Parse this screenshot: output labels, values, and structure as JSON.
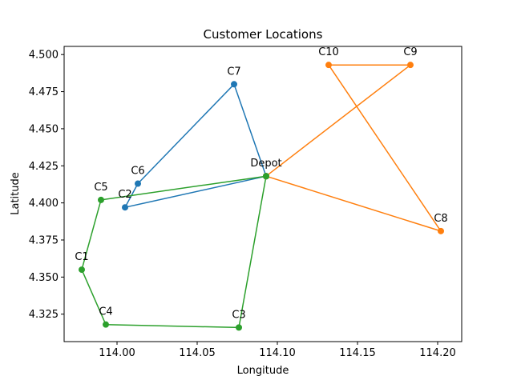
{
  "chart_data": {
    "type": "line",
    "title": "Customer Locations",
    "xlabel": "Longitude",
    "ylabel": "Latitude",
    "xlim": [
      113.967,
      114.215
    ],
    "ylim": [
      4.3065,
      4.5055
    ],
    "x_ticks": [
      114.0,
      114.05,
      114.1,
      114.15,
      114.2
    ],
    "x_tick_labels": [
      "114.00",
      "114.05",
      "114.10",
      "114.15",
      "114.20"
    ],
    "y_ticks": [
      4.325,
      4.35,
      4.375,
      4.4,
      4.425,
      4.45,
      4.475,
      4.5
    ],
    "y_tick_labels": [
      "4.325",
      "4.350",
      "4.375",
      "4.400",
      "4.425",
      "4.450",
      "4.475",
      "4.500"
    ],
    "grid": false,
    "locations": [
      {
        "label": "Depot",
        "x": 114.093,
        "y": 4.418
      },
      {
        "label": "C1",
        "x": 113.978,
        "y": 4.355
      },
      {
        "label": "C2",
        "x": 114.005,
        "y": 4.397
      },
      {
        "label": "C3",
        "x": 114.076,
        "y": 4.316
      },
      {
        "label": "C4",
        "x": 113.993,
        "y": 4.318
      },
      {
        "label": "C5",
        "x": 113.99,
        "y": 4.402
      },
      {
        "label": "C6",
        "x": 114.013,
        "y": 4.413
      },
      {
        "label": "C7",
        "x": 114.073,
        "y": 4.48
      },
      {
        "label": "C8",
        "x": 114.202,
        "y": 4.381
      },
      {
        "label": "C9",
        "x": 114.183,
        "y": 4.493
      },
      {
        "label": "C10",
        "x": 114.132,
        "y": 4.493
      }
    ],
    "routes": [
      {
        "color": "#1f77b4",
        "stops": [
          "Depot",
          "C7",
          "C6",
          "C2",
          "Depot"
        ]
      },
      {
        "color": "#ff7f0e",
        "stops": [
          "Depot",
          "C9",
          "C10",
          "C8",
          "Depot"
        ]
      },
      {
        "color": "#2ca02c",
        "stops": [
          "Depot",
          "C5",
          "C1",
          "C4",
          "C3",
          "Depot"
        ]
      }
    ]
  }
}
